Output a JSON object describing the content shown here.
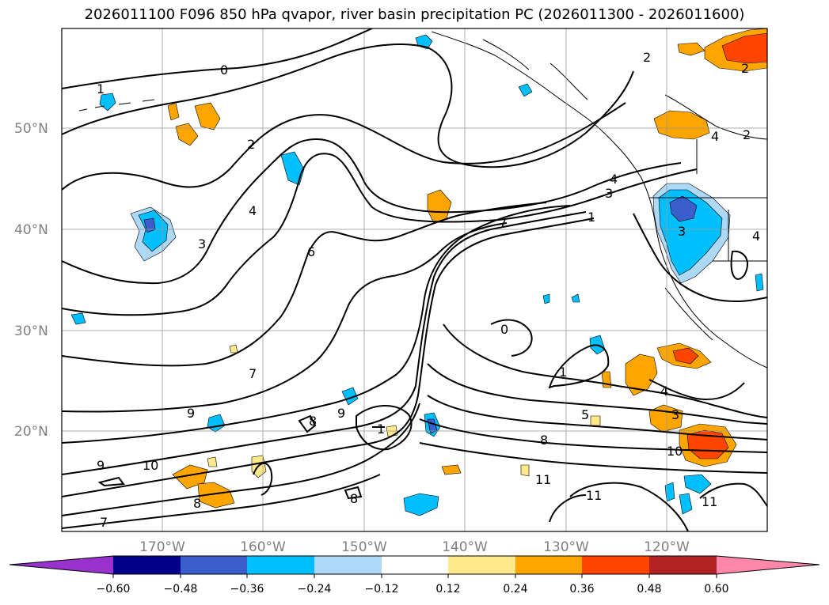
{
  "title": "2026011100 F096 850 hPa qvapor, river basin precipitation PC (2026011300 - 2026011600)",
  "map": {
    "lat_labels": [
      "50°N",
      "40°N",
      "30°N",
      "20°N"
    ],
    "lon_labels": [
      "170°W",
      "160°W",
      "150°W",
      "140°W",
      "130°W",
      "120°W"
    ]
  },
  "contour_labels": [
    "0",
    "1",
    "2",
    "2",
    "2",
    "3",
    "3",
    "4",
    "4",
    "6",
    "7",
    "7",
    "8",
    "8",
    "8",
    "9",
    "9",
    "10",
    "10",
    "11",
    "11",
    "11",
    "5",
    "1",
    "0",
    "4",
    "9",
    "8",
    "1",
    "3",
    "4",
    "3",
    "4",
    "1",
    "7",
    "2"
  ],
  "colorbar": {
    "ticks": [
      "−0.60",
      "−0.48",
      "−0.36",
      "−0.24",
      "−0.12",
      "0.12",
      "0.24",
      "0.36",
      "0.48",
      "0.60"
    ],
    "colors": [
      "#9932CC",
      "#00008B",
      "#3A5FCD",
      "#00BFFF",
      "#ADD8F6",
      "#FFFFFF",
      "#FFE98A",
      "#FFA500",
      "#FF4500",
      "#B22222",
      "#FF88AA"
    ]
  }
}
